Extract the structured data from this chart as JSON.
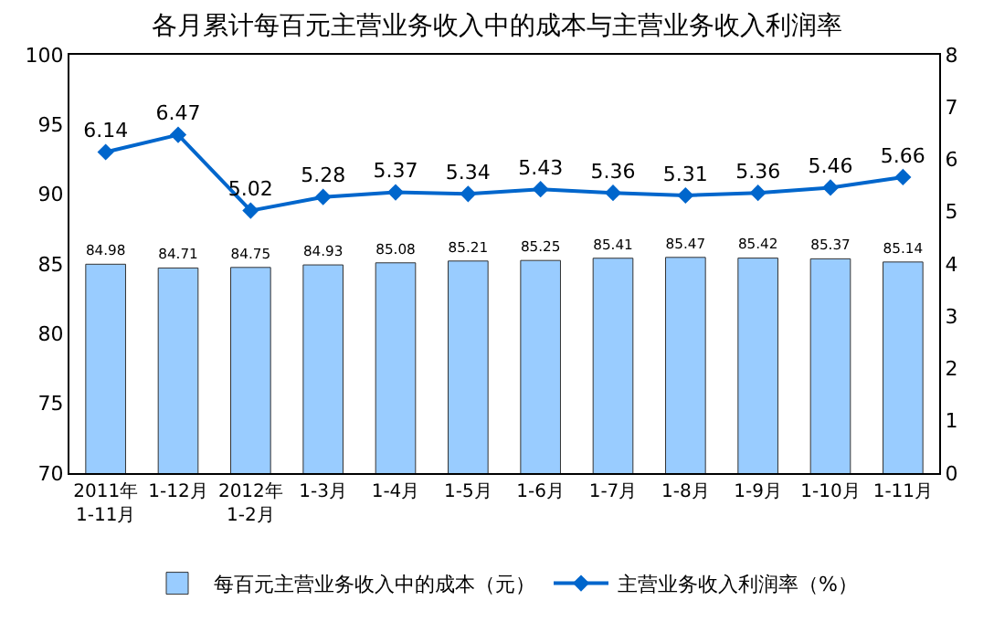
{
  "chart_data": {
    "type": "bar",
    "title": "各月累计每百元主营业务收入中的成本与主营业务收入利润率",
    "categories": [
      "2011年\n1-11月",
      "1-12月",
      "2012年\n1-2月",
      "1-3月",
      "1-4月",
      "1-5月",
      "1-6月",
      "1-7月",
      "1-8月",
      "1-9月",
      "1-10月",
      "1-11月"
    ],
    "series": [
      {
        "name": "每百元主营业务收入中的成本（元）",
        "color": "#99ccff",
        "values": [
          84.98,
          84.71,
          84.75,
          84.93,
          85.08,
          85.21,
          85.25,
          85.41,
          85.47,
          85.42,
          85.37,
          85.14
        ]
      },
      {
        "name": "主营业务收入利润率（%）",
        "type": "line",
        "axis": "y2",
        "color": "#0066cc",
        "marker": "diamond",
        "values": [
          6.14,
          6.47,
          5.02,
          5.28,
          5.37,
          5.34,
          5.43,
          5.36,
          5.31,
          5.36,
          5.46,
          5.66
        ]
      }
    ],
    "ylim": [
      70,
      100
    ],
    "yticks": [
      70,
      75,
      80,
      85,
      90,
      95,
      100
    ],
    "y2lim": [
      0,
      8
    ],
    "y2ticks": [
      0,
      1,
      2,
      3,
      4,
      5,
      6,
      7,
      8
    ],
    "data_labels": true,
    "grid": false,
    "legend": "bottom"
  }
}
